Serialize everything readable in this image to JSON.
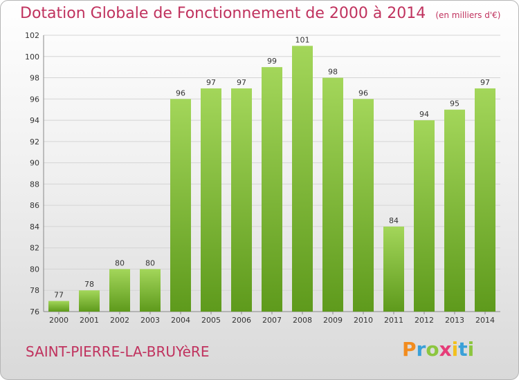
{
  "title": "Dotation Globale de Fonctionnement de 2000 à 2014",
  "subtitle": "(en milliers d'€)",
  "commune": "SAINT-PIERRE-LA-BRUYèRE",
  "logo": {
    "letters": [
      "P",
      "r",
      "o",
      "x",
      "i",
      "t",
      "i"
    ],
    "colors": [
      "#f28c1e",
      "#3aa0d8",
      "#8cc63f",
      "#e63c78",
      "#f2c01e",
      "#3aa0d8",
      "#8cc63f"
    ]
  },
  "colors": {
    "title": "#c0325e",
    "bar_top": "#a3d65a",
    "bar_bottom": "#5e9a1c",
    "grid": "#d4d4d4"
  },
  "chart_data": {
    "type": "bar",
    "title": "Dotation Globale de Fonctionnement de 2000 à 2014",
    "subtitle": "(en milliers d'€)",
    "categories": [
      "2000",
      "2001",
      "2002",
      "2003",
      "2004",
      "2005",
      "2006",
      "2007",
      "2008",
      "2009",
      "2010",
      "2011",
      "2012",
      "2013",
      "2014"
    ],
    "values": [
      77,
      78,
      80,
      80,
      96,
      97,
      97,
      99,
      101,
      98,
      96,
      84,
      94,
      95,
      97
    ],
    "ylim": [
      76,
      102
    ],
    "yticks": [
      76,
      78,
      80,
      82,
      84,
      86,
      88,
      90,
      92,
      94,
      96,
      98,
      100,
      102
    ],
    "grid": true,
    "data_labels": true
  }
}
